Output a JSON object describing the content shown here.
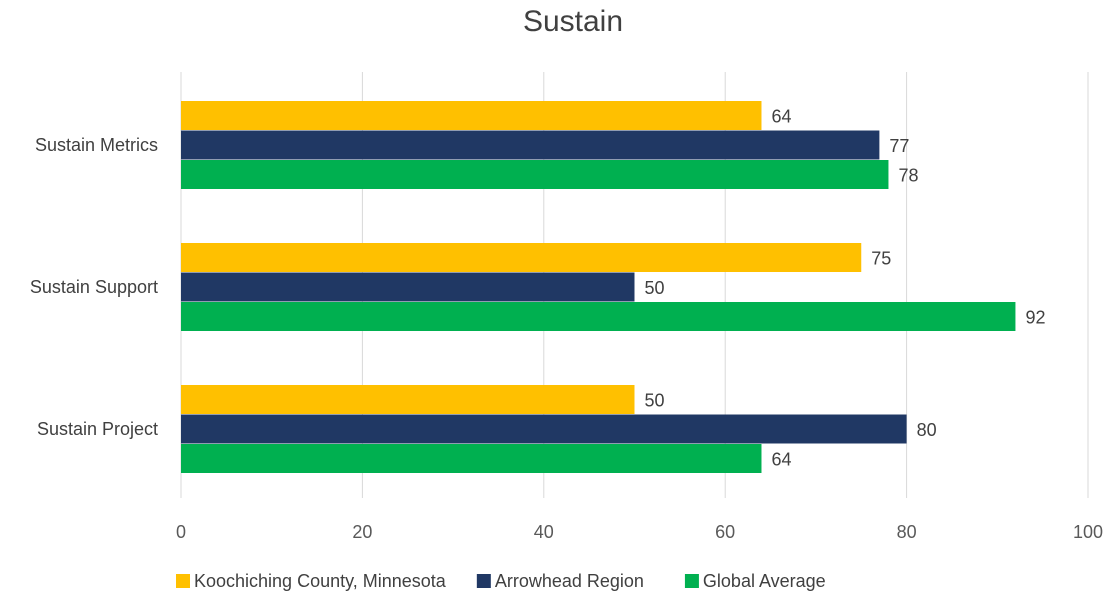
{
  "chart_data": {
    "type": "bar",
    "orientation": "horizontal",
    "title": "Sustain",
    "categories": [
      "Sustain Metrics",
      "Sustain Support",
      "Sustain Project"
    ],
    "series": [
      {
        "name": "Koochiching County, Minnesota",
        "color": "#FFC000",
        "values": [
          64,
          75,
          50
        ]
      },
      {
        "name": "Arrowhead Region",
        "color": "#203864",
        "values": [
          77,
          50,
          80
        ]
      },
      {
        "name": "Global Average",
        "color": "#00B050",
        "values": [
          78,
          92,
          64
        ]
      }
    ],
    "xlim": [
      0,
      100
    ],
    "xticks": [
      "0",
      "20",
      "40",
      "60",
      "80",
      "100"
    ],
    "grid": "vertical",
    "legend_position": "bottom",
    "data_labels": true
  }
}
